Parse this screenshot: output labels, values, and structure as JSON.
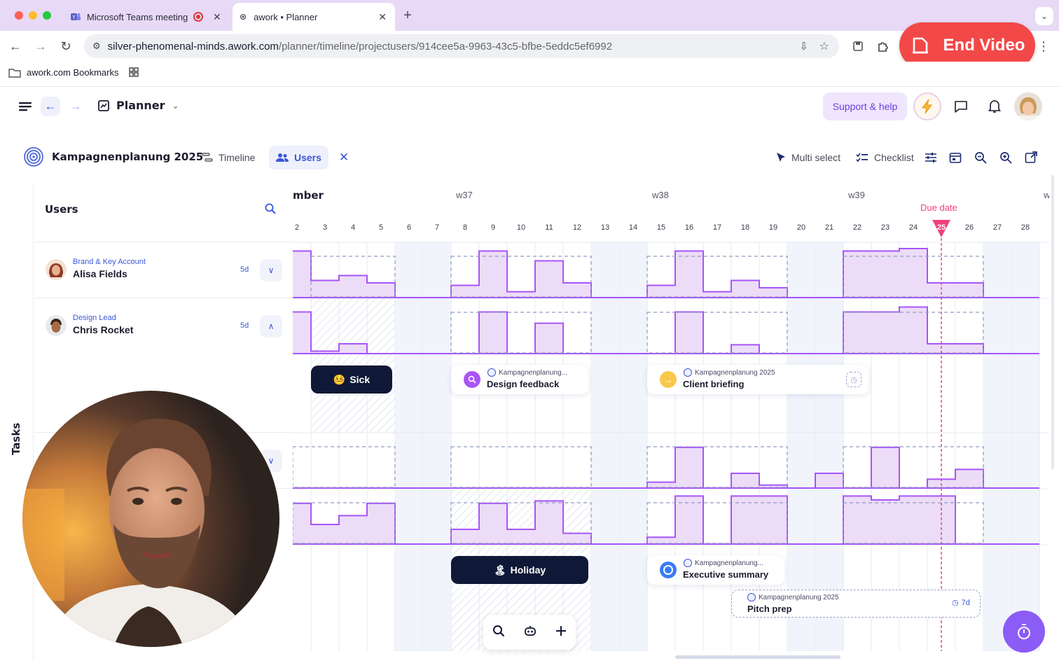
{
  "browser": {
    "tabs": [
      {
        "label": "Microsoft Teams meeting"
      },
      {
        "label": "awork • Planner"
      }
    ],
    "url_host": "silver-phenomenal-minds.awork.com",
    "url_path": "/planner/timeline/projectusers/914cee5a-9963-43c5-bfbe-5eddc5ef6992",
    "bookmarks_label": "awork.com Bookmarks",
    "end_video_label": "End Video"
  },
  "app": {
    "title": "Planner",
    "support_label": "Support & help"
  },
  "project": {
    "name": "Kampagnenplanung 2025",
    "views": [
      {
        "label": "Timeline"
      },
      {
        "label": "Users"
      }
    ],
    "toolbar": {
      "multi_select": "Multi select",
      "checklist": "Checklist"
    }
  },
  "sidebar": {
    "vertical_tab": "Tasks",
    "panel_title": "Users",
    "users": [
      {
        "role": "Brand & Key Account",
        "name": "Alisa Fields",
        "duration": "5d"
      },
      {
        "role": "Design Lead",
        "name": "Chris Rocket",
        "duration": "5d"
      }
    ]
  },
  "timeline": {
    "month_fragment": "mber",
    "weeks": [
      {
        "label": "w37"
      },
      {
        "label": "w38"
      },
      {
        "label": "w39"
      },
      {
        "label": "w"
      }
    ],
    "days": [
      "2",
      "3",
      "4",
      "5",
      "6",
      "7",
      "8",
      "9",
      "10",
      "11",
      "12",
      "13",
      "14",
      "15",
      "16",
      "17",
      "18",
      "19",
      "20",
      "21",
      "22",
      "23",
      "24",
      "25",
      "26",
      "27",
      "28"
    ],
    "today": "25",
    "due_date_label": "Due date",
    "absences": [
      {
        "emoji": "🤒",
        "label": "Sick"
      },
      {
        "emoji": "🏝",
        "label": "Holiday"
      }
    ],
    "tasks": [
      {
        "project": "Kampagnenplanung...",
        "name": "Design feedback"
      },
      {
        "project": "Kampagnenplanung 2025",
        "name": "Client briefing"
      },
      {
        "project": "Kampagnenplanung...",
        "name": "Executive summary"
      },
      {
        "project": "Kampagnenplanung 2025",
        "name": "Pitch prep",
        "duration": "7d"
      }
    ]
  },
  "colors": {
    "accent": "#3a57d6",
    "workload_fill": "#ecdcf8",
    "workload_line": "#a855f7",
    "overload": "#f3a6c8",
    "due": "#f0427b",
    "fab": "#8b5cf6",
    "end_video": "#f24848"
  }
}
